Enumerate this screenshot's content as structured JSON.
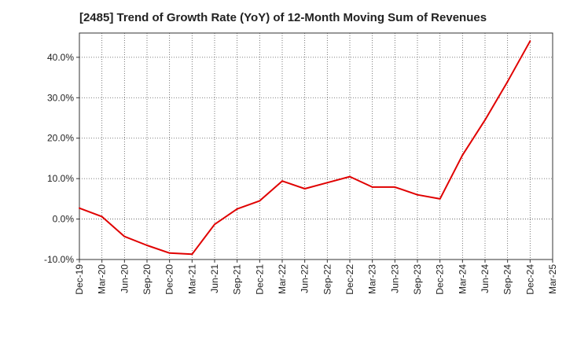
{
  "chart_data": {
    "type": "line",
    "title": "[2485]  Trend of Growth Rate (YoY) of 12-Month Moving Sum of Revenues",
    "xlabel": "",
    "ylabel": "",
    "categories": [
      "Dec-19",
      "Mar-20",
      "Jun-20",
      "Sep-20",
      "Dec-20",
      "Mar-21",
      "Jun-21",
      "Sep-21",
      "Dec-21",
      "Mar-22",
      "Jun-22",
      "Sep-22",
      "Dec-22",
      "Mar-23",
      "Jun-23",
      "Sep-23",
      "Dec-23",
      "Mar-24",
      "Jun-24",
      "Sep-24",
      "Dec-24",
      "Mar-25"
    ],
    "y_ticks": [
      -10,
      0,
      10,
      20,
      30,
      40
    ],
    "y_tick_labels": [
      "-10.0%",
      "0.0%",
      "10.0%",
      "20.0%",
      "30.0%",
      "40.0%"
    ],
    "ylim": [
      -10,
      46
    ],
    "grid": true,
    "series": [
      {
        "color": "#e00000",
        "values": [
          2.7,
          0.6,
          -4.3,
          -6.5,
          -8.4,
          -8.7,
          -1.3,
          2.5,
          4.5,
          9.4,
          7.5,
          9.0,
          10.5,
          7.9,
          7.9,
          6.0,
          5.0,
          15.8,
          24.5,
          34.0,
          44.0,
          null
        ]
      }
    ]
  }
}
